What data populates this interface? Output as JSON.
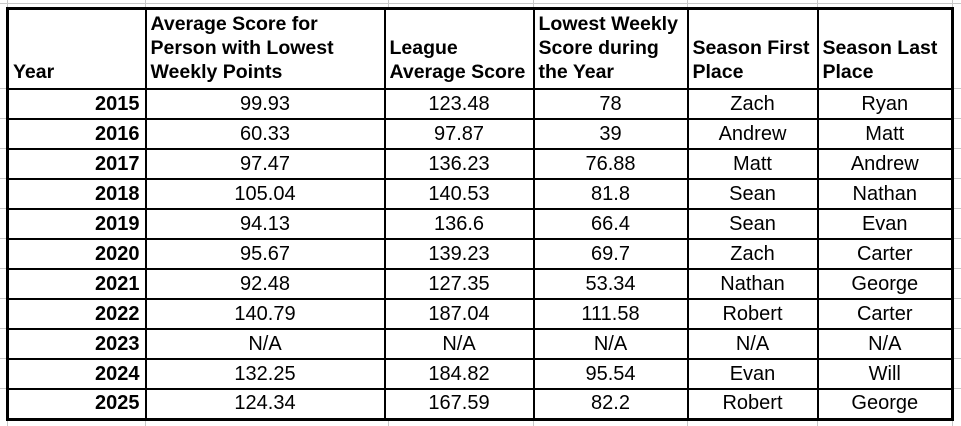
{
  "table": {
    "headers": [
      {
        "key": "year",
        "label": "Year"
      },
      {
        "key": "avg_lowest",
        "label": "Average Score for Person with Lowest Weekly Points"
      },
      {
        "key": "league_avg",
        "label": "League Average Score"
      },
      {
        "key": "lowest_weekly",
        "label": "Lowest Weekly Score during the Year"
      },
      {
        "key": "first_place",
        "label": "Season First Place"
      },
      {
        "key": "last_place",
        "label": "Season Last Place"
      }
    ],
    "rows": [
      {
        "year": "2015",
        "avg_lowest": "99.93",
        "league_avg": "123.48",
        "lowest_weekly": "78",
        "first_place": "Zach",
        "last_place": "Ryan"
      },
      {
        "year": "2016",
        "avg_lowest": "60.33",
        "league_avg": "97.87",
        "lowest_weekly": "39",
        "first_place": "Andrew",
        "last_place": "Matt"
      },
      {
        "year": "2017",
        "avg_lowest": "97.47",
        "league_avg": "136.23",
        "lowest_weekly": "76.88",
        "first_place": "Matt",
        "last_place": "Andrew"
      },
      {
        "year": "2018",
        "avg_lowest": "105.04",
        "league_avg": "140.53",
        "lowest_weekly": "81.8",
        "first_place": "Sean",
        "last_place": "Nathan"
      },
      {
        "year": "2019",
        "avg_lowest": "94.13",
        "league_avg": "136.6",
        "lowest_weekly": "66.4",
        "first_place": "Sean",
        "last_place": "Evan"
      },
      {
        "year": "2020",
        "avg_lowest": "95.67",
        "league_avg": "139.23",
        "lowest_weekly": "69.7",
        "first_place": "Zach",
        "last_place": "Carter"
      },
      {
        "year": "2021",
        "avg_lowest": "92.48",
        "league_avg": "127.35",
        "lowest_weekly": "53.34",
        "first_place": "Nathan",
        "last_place": "George"
      },
      {
        "year": "2022",
        "avg_lowest": "140.79",
        "league_avg": "187.04",
        "lowest_weekly": "111.58",
        "first_place": "Robert",
        "last_place": "Carter"
      },
      {
        "year": "2023",
        "avg_lowest": "N/A",
        "league_avg": "N/A",
        "lowest_weekly": "N/A",
        "first_place": "N/A",
        "last_place": "N/A"
      },
      {
        "year": "2024",
        "avg_lowest": "132.25",
        "league_avg": "184.82",
        "lowest_weekly": "95.54",
        "first_place": "Evan",
        "last_place": "Will"
      },
      {
        "year": "2025",
        "avg_lowest": "124.34",
        "league_avg": "167.59",
        "lowest_weekly": "82.2",
        "first_place": "Robert",
        "last_place": "George"
      }
    ]
  },
  "colors": {
    "text": "#000000",
    "table_border": "#000000",
    "gridline": "#c8c8c8",
    "background": "#ffffff"
  }
}
